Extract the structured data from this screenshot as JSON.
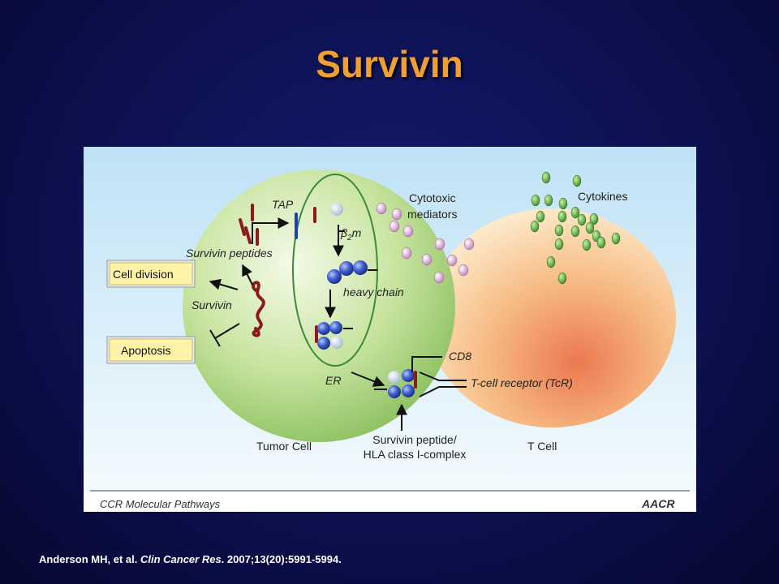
{
  "slide": {
    "title": "Survivin",
    "citation": {
      "authors": "Anderson MH, et al. ",
      "journal": "Clin Cancer Res",
      "details": ". 2007;13(20):5991-5994."
    }
  },
  "figure": {
    "footer_label": "CCR Molecular Pathways",
    "logo_text": "AACR",
    "labels": {
      "tap": "TAP",
      "b2m_prefix": "β",
      "b2m_sub": "2",
      "b2m_suffix": "m",
      "survivin_peptides": "Survivin peptides",
      "survivin": "Survivin",
      "heavy_chain": "heavy chain",
      "er": "ER",
      "cd8": "CD8",
      "tcr": "T-cell receptor (TcR)",
      "cytotoxic_line1": "Cytotoxic",
      "cytotoxic_line2": "mediators",
      "cytokines": "Cytokines",
      "complex_line1": "Survivin peptide/",
      "complex_line2": "HLA class I-complex",
      "tumor_cell": "Tumor Cell",
      "t_cell": "T Cell"
    },
    "boxes": {
      "cell_division": "Cell division",
      "apoptosis": "Apoptosis"
    },
    "colors": {
      "tumor_cell": "#a8d080",
      "t_cell": "#f4a060",
      "molecule_blue": "#3050c0",
      "peptide_red": "#8b1a1a",
      "cytokine_green": "#5aa040",
      "mediator_pink": "#d8a0d0",
      "box_fill": "#fff4b0"
    }
  }
}
